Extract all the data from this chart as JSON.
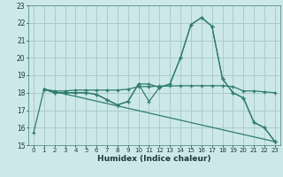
{
  "title": "",
  "xlabel": "Humidex (Indice chaleur)",
  "background_color": "#cde8e8",
  "grid_color": "#aacccc",
  "line_color": "#2e7d6e",
  "xlim": [
    -0.5,
    23.5
  ],
  "ylim": [
    15,
    23
  ],
  "yticks": [
    15,
    16,
    17,
    18,
    19,
    20,
    21,
    22,
    23
  ],
  "xticks": [
    0,
    1,
    2,
    3,
    4,
    5,
    6,
    7,
    8,
    9,
    10,
    11,
    12,
    13,
    14,
    15,
    16,
    17,
    18,
    19,
    20,
    21,
    22,
    23
  ],
  "series1_x": [
    0,
    1,
    2,
    3,
    4,
    5,
    6,
    7,
    8,
    9,
    10,
    11,
    12,
    13,
    14,
    15,
    16,
    17,
    18,
    19,
    20,
    21,
    22,
    23
  ],
  "series1_y": [
    15.7,
    18.2,
    18.0,
    18.0,
    18.0,
    18.0,
    17.9,
    17.6,
    17.3,
    17.5,
    18.5,
    18.5,
    18.3,
    18.5,
    20.0,
    21.9,
    22.3,
    21.8,
    18.8,
    18.0,
    17.7,
    16.3,
    16.0,
    15.2
  ],
  "series2_x": [
    1,
    2,
    3,
    4,
    5,
    6,
    7,
    8,
    9,
    10,
    11,
    12,
    13,
    14,
    15,
    16,
    17,
    18,
    19,
    20,
    21,
    22,
    23
  ],
  "series2_y": [
    18.2,
    18.0,
    18.0,
    18.0,
    18.0,
    17.9,
    17.6,
    17.3,
    17.5,
    18.5,
    17.5,
    18.3,
    18.5,
    20.0,
    21.9,
    22.3,
    21.8,
    18.8,
    18.0,
    17.7,
    16.3,
    16.0,
    15.2
  ],
  "series3_x": [
    1,
    2,
    3,
    4,
    5,
    6,
    7,
    8,
    9,
    10,
    11,
    12,
    13,
    14,
    15,
    16,
    17,
    18,
    19,
    20,
    21,
    22,
    23
  ],
  "series3_y": [
    18.2,
    18.1,
    18.1,
    18.15,
    18.15,
    18.15,
    18.15,
    18.15,
    18.2,
    18.35,
    18.35,
    18.38,
    18.38,
    18.4,
    18.4,
    18.4,
    18.4,
    18.4,
    18.35,
    18.1,
    18.1,
    18.05,
    18.0
  ],
  "series4_x": [
    1,
    23
  ],
  "series4_y": [
    18.2,
    15.2
  ]
}
